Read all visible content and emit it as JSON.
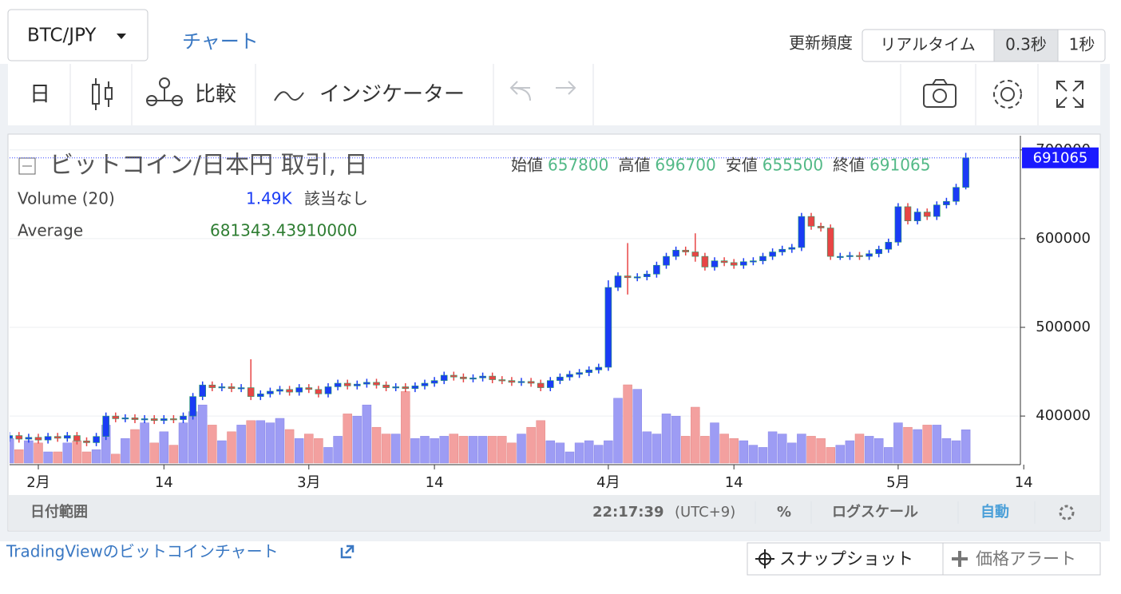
{
  "header": {
    "symbol": "BTC/JPY",
    "tab": "チャート",
    "refresh_label": "更新頻度",
    "refresh_options": [
      "リアルタイム",
      "0.3秒",
      "1秒"
    ]
  },
  "toolbar": {
    "interval": "日",
    "compare": "比較",
    "indicators": "インジケーター"
  },
  "chart_data": {
    "type": "candlestick",
    "title": "ビットコイン/日本円 取引, 日",
    "legend_labels": [
      "始値",
      "高値",
      "安値",
      "終値"
    ],
    "studies": [
      {
        "name": "Volume (20)",
        "value": "1.49K",
        "note": "該当なし"
      },
      {
        "name": "Average",
        "value": "681343.43910000"
      }
    ],
    "categories": [
      null,
      null,
      null,
      "2月",
      null,
      null,
      null,
      null,
      null,
      null,
      null,
      null,
      null,
      null,
      null,
      null,
      "14",
      null,
      null,
      null,
      null,
      null,
      null,
      null,
      null,
      null,
      null,
      null,
      null,
      null,
      null,
      "3月",
      null,
      null,
      null,
      null,
      null,
      null,
      null,
      null,
      null,
      null,
      null,
      null,
      "14",
      null,
      null,
      null,
      null,
      null,
      null,
      null,
      null,
      null,
      null,
      null,
      null,
      null,
      null,
      null,
      null,
      null,
      "4月",
      null,
      null,
      null,
      null,
      null,
      null,
      null,
      null,
      null,
      null,
      null,
      null,
      "14",
      null,
      null,
      null,
      null,
      null,
      null,
      null,
      null,
      null,
      null,
      null,
      null,
      null,
      null,
      null,
      null,
      "5月",
      null,
      null,
      null,
      null,
      null,
      null,
      null,
      null,
      null,
      null,
      null,
      null,
      "14"
    ],
    "open": [
      375000,
      378000,
      374000,
      376000,
      373000,
      377000,
      375000,
      378000,
      372000,
      370000,
      377000,
      400000,
      397000,
      398000,
      396000,
      397000,
      395000,
      397000,
      396000,
      400000,
      422000,
      435000,
      432000,
      433000,
      431000,
      432000,
      422000,
      425000,
      428000,
      430000,
      427000,
      432000,
      430000,
      425000,
      433000,
      437000,
      434000,
      436000,
      438000,
      435000,
      432000,
      433000,
      431000,
      434000,
      437000,
      440000,
      446000,
      444000,
      442000,
      443000,
      445000,
      441000,
      440000,
      438000,
      439000,
      437000,
      432000,
      440000,
      444000,
      447000,
      449000,
      452000,
      455000,
      545000,
      558000,
      556000,
      557000,
      560000,
      570000,
      580000,
      587000,
      585000,
      580000,
      568000,
      575000,
      573000,
      570000,
      574000,
      575000,
      580000,
      585000,
      588000,
      590000,
      625000,
      614000,
      612000,
      580000,
      580000,
      581000,
      580000,
      583000,
      588000,
      596000,
      636000,
      620000,
      630000,
      625000,
      638000,
      642000,
      657800,
      null,
      null,
      null,
      null,
      null,
      null
    ],
    "high": [
      382000,
      382000,
      380000,
      380000,
      381000,
      381000,
      382000,
      382000,
      376000,
      381000,
      404000,
      404000,
      402000,
      402000,
      401000,
      401000,
      401000,
      401000,
      404000,
      426000,
      439000,
      439000,
      437000,
      437000,
      436000,
      464000,
      429000,
      432000,
      434000,
      434000,
      436000,
      436000,
      434000,
      437000,
      441000,
      441000,
      440000,
      442000,
      442000,
      439000,
      437000,
      437000,
      438000,
      441000,
      444000,
      450000,
      450000,
      448000,
      447000,
      449000,
      449000,
      445000,
      444000,
      443000,
      443000,
      441000,
      444000,
      448000,
      451000,
      453000,
      456000,
      459000,
      553000,
      562000,
      595000,
      561000,
      564000,
      574000,
      584000,
      591000,
      591000,
      606000,
      584000,
      579000,
      579000,
      577000,
      578000,
      579000,
      584000,
      589000,
      592000,
      594000,
      629000,
      629000,
      618000,
      616000,
      584000,
      585000,
      585000,
      587000,
      592000,
      600000,
      640000,
      640000,
      634000,
      634000,
      642000,
      646000,
      661800,
      696700,
      null,
      null,
      null,
      null,
      null,
      null
    ],
    "low": [
      371000,
      370000,
      370000,
      369000,
      369000,
      371000,
      371000,
      368000,
      366000,
      366000,
      373000,
      393000,
      393000,
      392000,
      392000,
      391000,
      391000,
      392000,
      392000,
      396000,
      418000,
      428000,
      428000,
      427000,
      427000,
      418000,
      418000,
      421000,
      424000,
      423000,
      423000,
      426000,
      421000,
      421000,
      429000,
      430000,
      430000,
      432000,
      431000,
      428000,
      428000,
      427000,
      427000,
      430000,
      433000,
      436000,
      440000,
      438000,
      438000,
      439000,
      437000,
      436000,
      434000,
      434000,
      433000,
      428000,
      428000,
      436000,
      440000,
      443000,
      445000,
      448000,
      451000,
      541000,
      537000,
      552000,
      553000,
      556000,
      566000,
      576000,
      581000,
      574000,
      564000,
      564000,
      569000,
      566000,
      566000,
      570000,
      571000,
      576000,
      581000,
      584000,
      586000,
      610000,
      608000,
      576000,
      576000,
      576000,
      576000,
      576000,
      579000,
      584000,
      592000,
      616000,
      616000,
      621000,
      621000,
      634000,
      638000,
      655500,
      null,
      null,
      null,
      null,
      null,
      null
    ],
    "close": [
      378000,
      374000,
      376000,
      373000,
      377000,
      375000,
      378000,
      372000,
      370000,
      377000,
      400000,
      397000,
      398000,
      396000,
      397000,
      395000,
      397000,
      396000,
      400000,
      422000,
      435000,
      432000,
      433000,
      431000,
      432000,
      422000,
      425000,
      428000,
      430000,
      427000,
      432000,
      430000,
      425000,
      433000,
      437000,
      434000,
      436000,
      438000,
      435000,
      432000,
      433000,
      431000,
      434000,
      437000,
      440000,
      446000,
      444000,
      442000,
      443000,
      445000,
      441000,
      440000,
      438000,
      439000,
      437000,
      432000,
      440000,
      444000,
      447000,
      449000,
      452000,
      455000,
      545000,
      558000,
      556000,
      557000,
      560000,
      570000,
      580000,
      587000,
      585000,
      580000,
      568000,
      575000,
      573000,
      570000,
      574000,
      575000,
      580000,
      585000,
      588000,
      590000,
      625000,
      614000,
      612000,
      580000,
      580000,
      581000,
      580000,
      583000,
      588000,
      596000,
      636000,
      620000,
      630000,
      625000,
      638000,
      642000,
      657800,
      691065,
      null,
      null,
      null,
      null,
      null,
      null
    ],
    "volume": [
      1.1,
      0.6,
      1.0,
      0.9,
      0.5,
      0.5,
      0.9,
      1.0,
      0.5,
      0.6,
      1.7,
      0.4,
      1.1,
      1.5,
      1.8,
      0.9,
      1.4,
      0.8,
      1.8,
      2.3,
      2.6,
      1.7,
      1.0,
      1.4,
      1.7,
      1.9,
      1.9,
      1.8,
      2.0,
      1.5,
      1.1,
      1.3,
      1.1,
      0.7,
      1.2,
      2.2,
      2.1,
      2.6,
      1.6,
      1.3,
      1.3,
      3.2,
      1.1,
      1.2,
      1.1,
      1.2,
      1.3,
      1.2,
      1.2,
      1.2,
      1.2,
      1.2,
      0.9,
      1.3,
      1.6,
      1.9,
      1.0,
      0.9,
      0.5,
      0.9,
      1.0,
      0.8,
      1.0,
      2.9,
      3.5,
      3.3,
      1.4,
      1.3,
      2.2,
      2.1,
      1.2,
      2.5,
      1.2,
      1.8,
      1.3,
      1.1,
      1.0,
      0.8,
      0.7,
      1.4,
      1.3,
      0.9,
      1.3,
      1.2,
      1.1,
      0.7,
      0.8,
      1.0,
      1.3,
      1.2,
      1.1,
      0.7,
      1.8,
      1.6,
      1.5,
      1.7,
      1.7,
      1.1,
      1.0,
      1.49,
      null,
      null,
      null,
      null,
      null,
      null
    ],
    "up_color": "#1a3cf5",
    "down_color": "#e84545",
    "volume_up_color": "#9d9cf4",
    "volume_down_color": "#f3a09f",
    "ylim": [
      347000,
      716000
    ],
    "yticks": [
      400000,
      500000,
      600000,
      700000
    ]
  },
  "footer": {
    "date_range": "日付範囲",
    "time": "22:17:39",
    "timezone": "(UTC+9)",
    "percent": "%",
    "log_scale": "ログスケール",
    "auto": "自動"
  },
  "links": {
    "tradingview": "TradingViewのビットコインチャート",
    "snapshot": "スナップショット",
    "alert": "価格アラート"
  }
}
